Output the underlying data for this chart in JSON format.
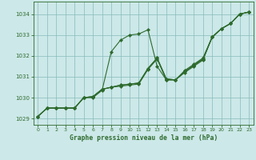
{
  "title": "Graphe pression niveau de la mer (hPa)",
  "bg_color": "#cce8e8",
  "grid_color": "#88bbbb",
  "line_color": "#2d6a2d",
  "xlim": [
    -0.5,
    23.5
  ],
  "ylim": [
    1028.7,
    1034.6
  ],
  "yticks": [
    1029,
    1030,
    1031,
    1032,
    1033,
    1034
  ],
  "xticks": [
    0,
    1,
    2,
    3,
    4,
    5,
    6,
    7,
    8,
    9,
    10,
    11,
    12,
    13,
    14,
    15,
    16,
    17,
    18,
    19,
    20,
    21,
    22,
    23
  ],
  "series": [
    {
      "x": [
        0,
        1,
        2,
        3,
        4,
        5,
        6,
        7,
        8,
        9,
        10,
        11,
        12,
        13,
        14,
        15,
        16,
        17,
        18,
        19,
        20,
        21,
        22,
        23
      ],
      "y": [
        1029.1,
        1029.5,
        1029.5,
        1029.5,
        1029.5,
        1030.0,
        1030.0,
        1030.35,
        1032.2,
        1032.75,
        1033.0,
        1033.05,
        1033.25,
        1031.5,
        1030.85,
        1030.85,
        1031.25,
        1031.55,
        1031.85,
        1032.9,
        1033.3,
        1033.55,
        1034.0,
        1034.1
      ]
    },
    {
      "x": [
        0,
        1,
        2,
        3,
        4,
        5,
        6,
        7,
        8,
        9,
        10,
        11,
        12,
        13,
        14,
        15,
        16,
        17,
        18,
        19,
        20,
        21,
        22,
        23
      ],
      "y": [
        1029.1,
        1029.5,
        1029.5,
        1029.5,
        1029.5,
        1030.0,
        1030.05,
        1030.4,
        1030.5,
        1030.55,
        1030.6,
        1030.65,
        1031.35,
        1031.85,
        1030.85,
        1030.85,
        1031.2,
        1031.5,
        1031.8,
        1032.9,
        1033.3,
        1033.55,
        1034.0,
        1034.1
      ]
    },
    {
      "x": [
        0,
        1,
        2,
        3,
        4,
        5,
        6,
        7,
        8,
        9,
        10,
        11,
        12,
        13,
        14,
        15,
        16,
        17,
        18,
        19,
        20,
        21,
        22,
        23
      ],
      "y": [
        1029.1,
        1029.5,
        1029.5,
        1029.5,
        1029.5,
        1030.0,
        1030.05,
        1030.4,
        1030.5,
        1030.6,
        1030.65,
        1030.7,
        1031.4,
        1031.9,
        1030.9,
        1030.85,
        1031.25,
        1031.55,
        1031.85,
        1032.9,
        1033.3,
        1033.55,
        1034.0,
        1034.1
      ]
    },
    {
      "x": [
        0,
        1,
        2,
        3,
        4,
        5,
        6,
        7,
        8,
        9,
        10,
        11,
        12,
        13,
        14,
        15,
        16,
        17,
        18,
        19,
        20,
        21,
        22,
        23
      ],
      "y": [
        1029.1,
        1029.5,
        1029.5,
        1029.5,
        1029.5,
        1030.0,
        1030.05,
        1030.4,
        1030.5,
        1030.6,
        1030.65,
        1030.7,
        1031.4,
        1031.9,
        1030.9,
        1030.85,
        1031.3,
        1031.6,
        1031.9,
        1032.9,
        1033.3,
        1033.55,
        1034.0,
        1034.1
      ]
    }
  ]
}
